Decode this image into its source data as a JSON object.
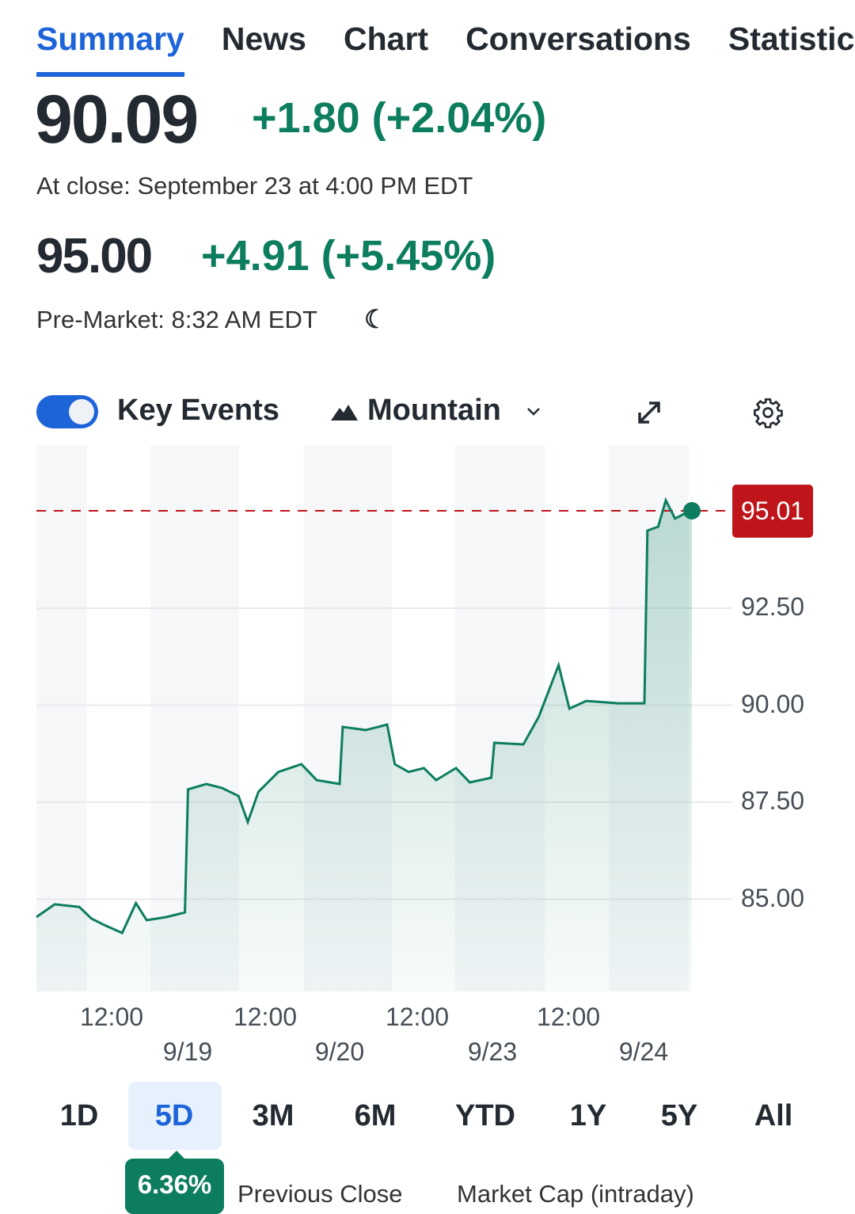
{
  "tabs": [
    "Summary",
    "News",
    "Chart",
    "Conversations",
    "Statistics"
  ],
  "quote": {
    "price": "90.09",
    "change": "+1.80 (+2.04%)",
    "close_label": "At close: September 23 at 4:00 PM EDT",
    "pre_price": "95.00",
    "pre_change": "+4.91 (+5.45%)",
    "pre_label": "Pre-Market: 8:32 AM EDT"
  },
  "toolbar": {
    "key_events": "Key Events",
    "key_events_on": true,
    "chart_type": "Mountain"
  },
  "colors": {
    "accent": "#1d64d9",
    "up": "#0c7d5f",
    "price_tag": "#c0141b"
  },
  "chart_data": {
    "type": "area",
    "current_price_label": "95.01",
    "current_price": 95.01,
    "y_ticks": [
      "92.50",
      "90.00",
      "87.50",
      "85.00"
    ],
    "ylim": [
      81.6,
      96.1
    ],
    "x_ticks_time": [
      "12:00",
      "12:00",
      "12:00",
      "12:00"
    ],
    "x_ticks_date": [
      "9/19",
      "9/20",
      "9/23",
      "9/24"
    ],
    "xlim": [
      0,
      4.27
    ],
    "x": [
      0,
      0.12,
      0.28,
      0.36,
      0.44,
      0.56,
      0.65,
      0.72,
      0.85,
      0.97,
      0.99,
      1.11,
      1.21,
      1.32,
      1.38,
      1.45,
      1.58,
      1.73,
      1.83,
      1.98,
      2.0,
      2.15,
      2.29,
      2.34,
      2.43,
      2.53,
      2.61,
      2.74,
      2.83,
      2.97,
      2.99,
      3.18,
      3.28,
      3.41,
      3.48,
      3.59,
      3.8,
      3.97,
      3.99,
      4.06,
      4.11,
      4.17,
      4.22,
      4.28
    ],
    "values": [
      84.54,
      84.87,
      84.8,
      84.5,
      84.34,
      84.13,
      84.9,
      84.46,
      84.54,
      84.66,
      87.83,
      87.97,
      87.87,
      87.66,
      86.99,
      87.77,
      88.28,
      88.48,
      88.07,
      87.97,
      89.44,
      89.36,
      89.5,
      88.48,
      88.28,
      88.38,
      88.07,
      88.38,
      88.01,
      88.13,
      89.03,
      88.99,
      89.7,
      91.03,
      89.91,
      90.11,
      90.05,
      90.05,
      94.5,
      94.6,
      95.28,
      94.81,
      94.91,
      95.01
    ]
  },
  "ranges": [
    "1D",
    "5D",
    "3M",
    "6M",
    "YTD",
    "1Y",
    "5Y",
    "All"
  ],
  "selected_range": "5D",
  "range_change": "6.36%",
  "stats": {
    "left_label": "Previous Close",
    "right_label": "Market Cap (intraday)"
  }
}
